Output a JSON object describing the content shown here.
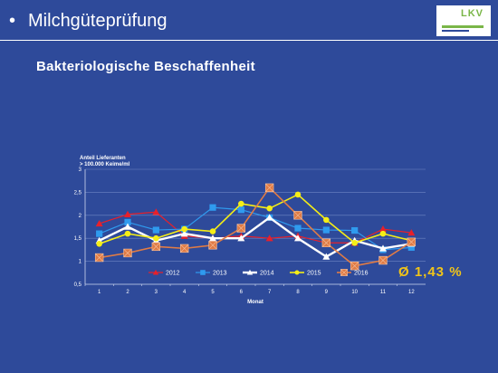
{
  "header": {
    "bullet": "•",
    "title": "Milchgüteprüfung",
    "logo_text": "LKV"
  },
  "subtitle": "Bakteriologische Beschaffenheit",
  "average_label": "Ø 1,43 %",
  "chart_data": {
    "type": "line",
    "ylabel_line1": "Anteil Lieferanten",
    "ylabel_line2": "> 100.000 Keime/ml",
    "xlabel": "Monat",
    "ylim": [
      0.5,
      3
    ],
    "y_ticks": [
      "0,5",
      "1",
      "1,5",
      "2",
      "2,5",
      "3"
    ],
    "categories": [
      "1",
      "2",
      "3",
      "4",
      "5",
      "6",
      "7",
      "8",
      "9",
      "10",
      "11",
      "12"
    ],
    "grid": true,
    "legend_position": "bottom",
    "series": [
      {
        "name": "2012",
        "color": "#e8202a",
        "marker": "triangle",
        "values": [
          1.82,
          2.02,
          2.07,
          1.55,
          1.5,
          1.55,
          1.5,
          1.55,
          1.4,
          1.4,
          1.7,
          1.62
        ]
      },
      {
        "name": "2013",
        "color": "#2f9bef",
        "marker": "square",
        "values": [
          1.6,
          1.85,
          1.68,
          1.7,
          2.17,
          2.12,
          1.95,
          1.72,
          1.68,
          1.67,
          1.25,
          1.3
        ]
      },
      {
        "name": "2014",
        "color": "#ffffff",
        "marker": "triangle",
        "values": [
          1.45,
          1.75,
          1.45,
          1.6,
          1.5,
          1.5,
          1.95,
          1.5,
          1.1,
          1.45,
          1.28,
          1.38
        ]
      },
      {
        "name": "2015",
        "color": "#f5ee16",
        "marker": "circle",
        "values": [
          1.38,
          1.6,
          1.5,
          1.7,
          1.65,
          2.25,
          2.15,
          2.45,
          1.9,
          1.4,
          1.6,
          1.45
        ]
      },
      {
        "name": "2016",
        "color": "#e07b45",
        "marker": "xsquare",
        "values": [
          1.08,
          1.18,
          1.32,
          1.28,
          1.35,
          1.72,
          2.6,
          2.0,
          1.4,
          0.9,
          1.02,
          1.42
        ]
      }
    ]
  }
}
